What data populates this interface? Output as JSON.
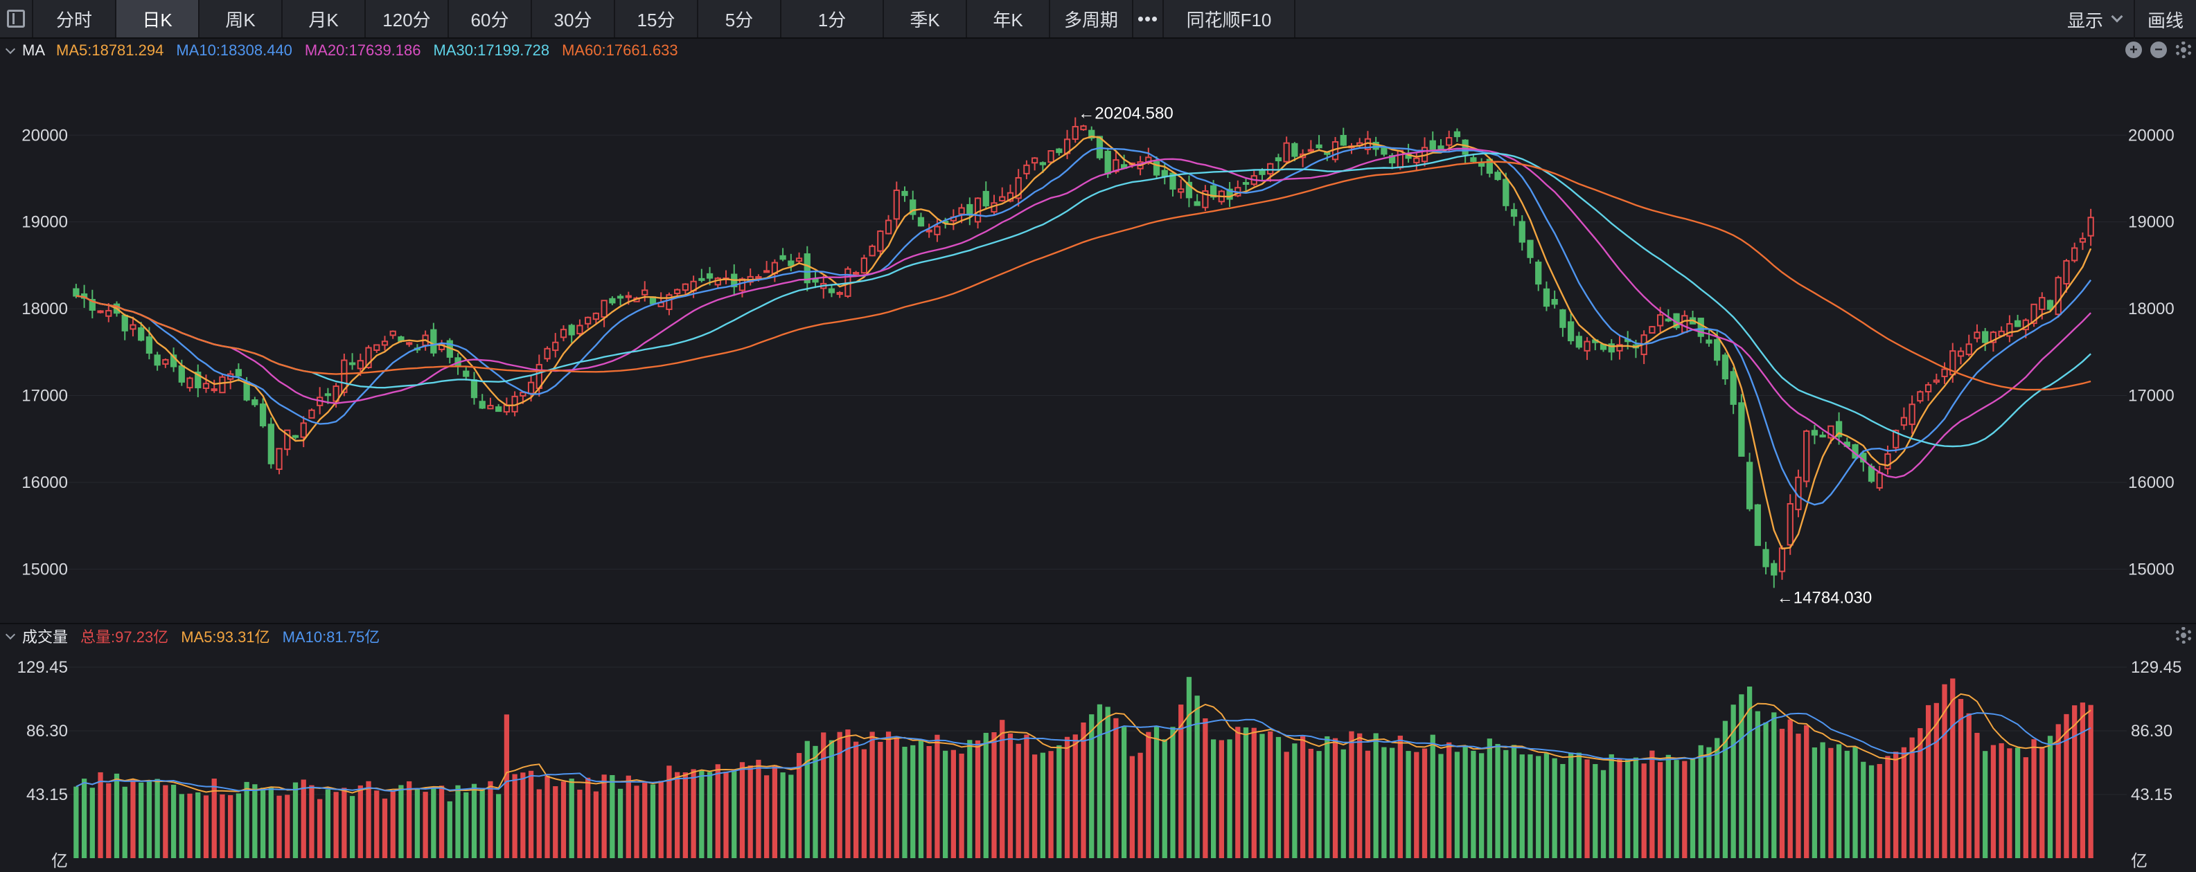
{
  "toolbar": {
    "tabs": [
      "分时",
      "日K",
      "周K",
      "月K",
      "120分",
      "60分",
      "30分",
      "15分",
      "5分",
      "1分",
      "季K",
      "年K",
      "多周期"
    ],
    "active_tab": "日K",
    "more": "•••",
    "f10": "同花顺F10",
    "display": "显示",
    "draw": "画线"
  },
  "ma_legend": {
    "label": "MA",
    "ma5": "MA5:18781.294",
    "ma10": "MA10:18308.440",
    "ma20": "MA20:17639.186",
    "ma30": "MA30:17199.728",
    "ma60": "MA60:17661.633"
  },
  "vol_legend": {
    "label": "成交量",
    "total": "总量:97.23亿",
    "ma5": "MA5:93.31亿",
    "ma10": "MA10:81.75亿"
  },
  "colors": {
    "up": "#e0494b",
    "down": "#4fb86a",
    "ma5": "#f3a540",
    "ma10": "#4f95ef",
    "ma20": "#d94fc2",
    "ma30": "#5fd3e8",
    "ma60": "#ef6f33",
    "axis_text": "#d7d9de"
  },
  "chart_data": [
    {
      "type": "candlestick",
      "title": "",
      "y_ticks": [
        "20000",
        "19000",
        "18000",
        "17000",
        "16000",
        "15000"
      ],
      "ylim": [
        14700,
        20600
      ],
      "max_label": "←20204.580",
      "min_label": "←14784.030",
      "max_value": 20204.58,
      "min_value": 14784.03,
      "series": [
        {
          "name": "MA5",
          "last": 18781.294
        },
        {
          "name": "MA10",
          "last": 18308.44
        },
        {
          "name": "MA20",
          "last": 17639.186
        },
        {
          "name": "MA30",
          "last": 17199.728
        },
        {
          "name": "MA60",
          "last": 17661.633
        }
      ],
      "close_keypoints": [
        [
          0,
          18150
        ],
        [
          5,
          17950
        ],
        [
          10,
          17400
        ],
        [
          16,
          17100
        ],
        [
          20,
          17300
        ],
        [
          24,
          16300
        ],
        [
          28,
          16700
        ],
        [
          33,
          17300
        ],
        [
          38,
          17700
        ],
        [
          43,
          17600
        ],
        [
          47,
          17400
        ],
        [
          50,
          16800
        ],
        [
          54,
          17000
        ],
        [
          58,
          17500
        ],
        [
          63,
          17900
        ],
        [
          68,
          18200
        ],
        [
          73,
          18100
        ],
        [
          78,
          18300
        ],
        [
          83,
          18400
        ],
        [
          88,
          18550
        ],
        [
          93,
          18200
        ],
        [
          97,
          18500
        ],
        [
          101,
          19300
        ],
        [
          106,
          18900
        ],
        [
          111,
          19200
        ],
        [
          116,
          19500
        ],
        [
          121,
          19900
        ],
        [
          124,
          20200
        ],
        [
          127,
          19600
        ],
        [
          131,
          19800
        ],
        [
          137,
          19300
        ],
        [
          143,
          19300
        ],
        [
          148,
          19800
        ],
        [
          152,
          19900
        ],
        [
          158,
          19900
        ],
        [
          164,
          19700
        ],
        [
          170,
          19900
        ],
        [
          175,
          19400
        ],
        [
          180,
          18300
        ],
        [
          184,
          17600
        ],
        [
          190,
          17500
        ],
        [
          194,
          17800
        ],
        [
          199,
          17900
        ],
        [
          203,
          17300
        ],
        [
          207,
          15300
        ],
        [
          209,
          14900
        ],
        [
          213,
          16500
        ],
        [
          217,
          16600
        ],
        [
          221,
          16000
        ],
        [
          225,
          16800
        ],
        [
          230,
          17400
        ],
        [
          235,
          17700
        ],
        [
          239,
          17900
        ],
        [
          243,
          18100
        ],
        [
          245,
          18600
        ],
        [
          248,
          19000
        ]
      ]
    },
    {
      "type": "bar",
      "title": "",
      "y_ticks": [
        "129.45",
        "86.30",
        "43.15",
        "亿"
      ],
      "ylim": [
        0,
        129.45
      ],
      "unit": "亿",
      "vol_keypoints": [
        [
          0,
          52
        ],
        [
          10,
          50
        ],
        [
          20,
          48
        ],
        [
          30,
          47
        ],
        [
          45,
          45
        ],
        [
          52,
          47
        ],
        [
          53,
          98
        ],
        [
          54,
          55
        ],
        [
          60,
          50
        ],
        [
          70,
          55
        ],
        [
          80,
          58
        ],
        [
          88,
          62
        ],
        [
          92,
          88
        ],
        [
          96,
          80
        ],
        [
          100,
          82
        ],
        [
          110,
          75
        ],
        [
          114,
          98
        ],
        [
          118,
          70
        ],
        [
          124,
          90
        ],
        [
          127,
          108
        ],
        [
          130,
          75
        ],
        [
          135,
          88
        ],
        [
          137,
          129
        ],
        [
          140,
          85
        ],
        [
          150,
          78
        ],
        [
          160,
          80
        ],
        [
          170,
          77
        ],
        [
          180,
          72
        ],
        [
          190,
          65
        ],
        [
          198,
          68
        ],
        [
          201,
          82
        ],
        [
          204,
          100
        ],
        [
          206,
          112
        ],
        [
          209,
          92
        ],
        [
          214,
          82
        ],
        [
          220,
          68
        ],
        [
          224,
          72
        ],
        [
          228,
          98
        ],
        [
          231,
          123
        ],
        [
          235,
          78
        ],
        [
          240,
          72
        ],
        [
          243,
          85
        ],
        [
          246,
          105
        ],
        [
          248,
          97
        ]
      ]
    }
  ]
}
